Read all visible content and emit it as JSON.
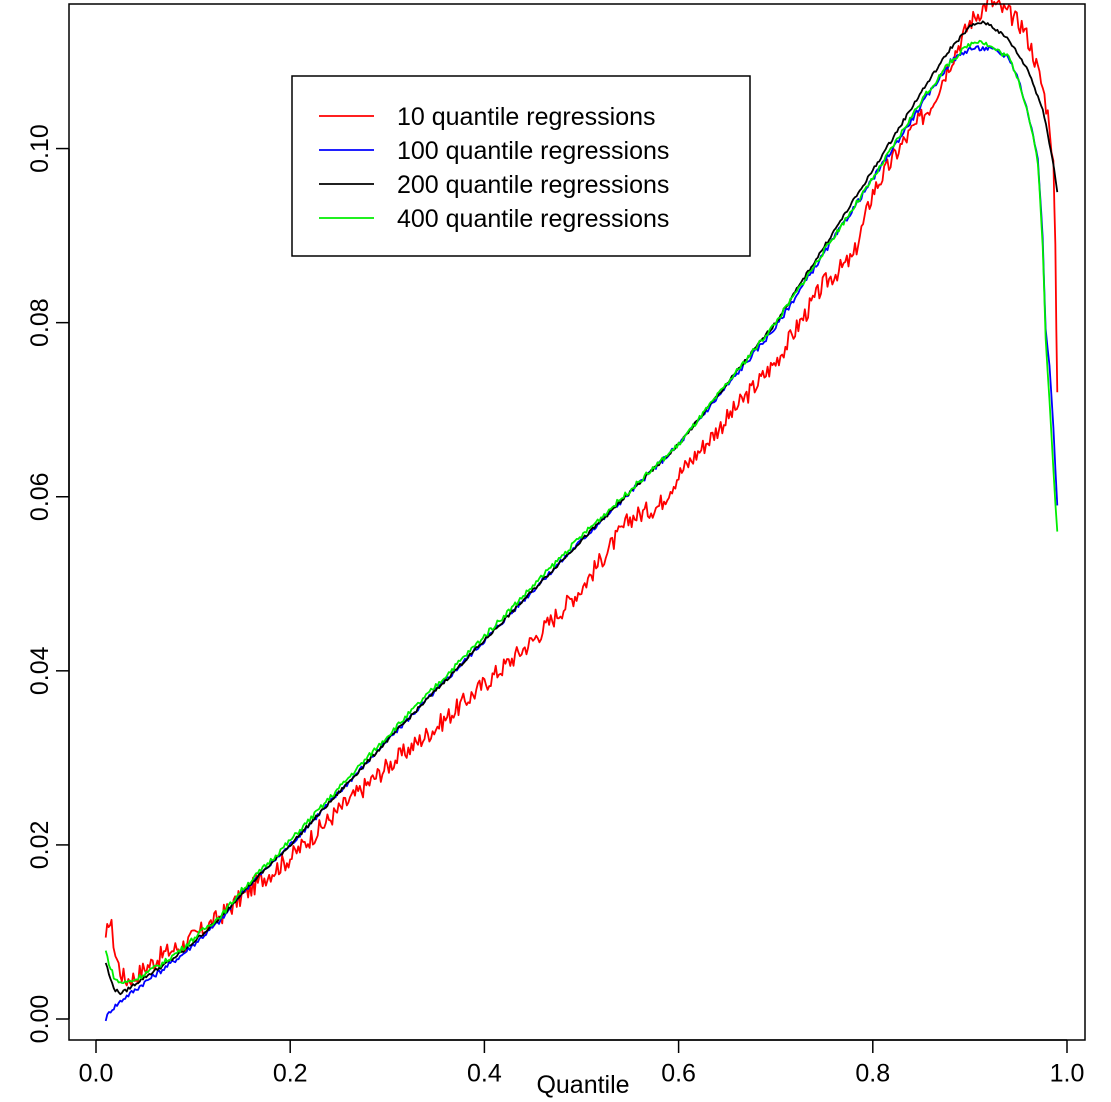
{
  "chart_data": {
    "type": "line",
    "title": "",
    "xlabel": "Quantile",
    "ylabel": "",
    "xlim": [
      0.0,
      1.0
    ],
    "ylim": [
      0.0,
      0.115
    ],
    "xticks": [
      0.0,
      0.2,
      0.4,
      0.6,
      0.8,
      1.0
    ],
    "xtick_labels": [
      "0.0",
      "0.2",
      "0.4",
      "0.6",
      "0.8",
      "1.0"
    ],
    "yticks": [
      0.0,
      0.02,
      0.04,
      0.06,
      0.08,
      0.1
    ],
    "ytick_labels": [
      "0.00",
      "0.02",
      "0.04",
      "0.06",
      "0.08",
      "0.10"
    ],
    "grid": false,
    "legend_position": "top-center",
    "series": [
      {
        "name": "10 quantile regressions",
        "color": "#ff0000",
        "x": [
          0.01,
          0.013,
          0.016,
          0.02,
          0.025,
          0.03,
          0.04,
          0.05,
          0.07,
          0.09,
          0.11,
          0.13,
          0.15,
          0.17,
          0.2,
          0.25,
          0.3,
          0.35,
          0.4,
          0.45,
          0.5,
          0.55,
          0.58,
          0.6,
          0.65,
          0.7,
          0.75,
          0.78,
          0.8,
          0.83,
          0.86,
          0.88,
          0.9,
          0.92,
          0.94,
          0.955,
          0.965,
          0.975,
          0.982,
          0.986,
          0.988,
          0.99
        ],
        "y": [
          0.0085,
          0.0115,
          0.0105,
          0.0075,
          0.0055,
          0.0045,
          0.0048,
          0.0058,
          0.0075,
          0.0085,
          0.0102,
          0.012,
          0.014,
          0.016,
          0.0185,
          0.024,
          0.029,
          0.0335,
          0.0385,
          0.0435,
          0.0495,
          0.0575,
          0.059,
          0.0625,
          0.069,
          0.0755,
          0.0845,
          0.0875,
          0.095,
          0.1005,
          0.105,
          0.11,
          0.1145,
          0.117,
          0.1155,
          0.114,
          0.111,
          0.107,
          0.103,
          0.098,
          0.088,
          0.072
        ]
      },
      {
        "name": "100 quantile regressions",
        "color": "#0000ff",
        "x": [
          0.01,
          0.015,
          0.02,
          0.03,
          0.04,
          0.05,
          0.07,
          0.09,
          0.11,
          0.13,
          0.15,
          0.2,
          0.3,
          0.4,
          0.5,
          0.6,
          0.7,
          0.8,
          0.85,
          0.88,
          0.9,
          0.92,
          0.94,
          0.95,
          0.96,
          0.97,
          0.975,
          0.978,
          0.982,
          0.986,
          0.99
        ],
        "y": [
          0.0,
          0.001,
          0.0015,
          0.0025,
          0.0033,
          0.0042,
          0.0058,
          0.0075,
          0.0095,
          0.0115,
          0.0145,
          0.02,
          0.032,
          0.0435,
          0.055,
          0.066,
          0.0795,
          0.0965,
          0.105,
          0.11,
          0.1115,
          0.1115,
          0.1105,
          0.108,
          0.104,
          0.099,
          0.09,
          0.079,
          0.075,
          0.068,
          0.059
        ]
      },
      {
        "name": "200 quantile regressions",
        "color": "#000000",
        "x": [
          0.01,
          0.015,
          0.02,
          0.025,
          0.03,
          0.04,
          0.05,
          0.07,
          0.09,
          0.11,
          0.13,
          0.15,
          0.2,
          0.3,
          0.4,
          0.5,
          0.6,
          0.7,
          0.8,
          0.85,
          0.88,
          0.9,
          0.91,
          0.92,
          0.94,
          0.96,
          0.975,
          0.985,
          0.99
        ],
        "y": [
          0.0065,
          0.0045,
          0.0033,
          0.003,
          0.0032,
          0.004,
          0.0048,
          0.0062,
          0.0078,
          0.0098,
          0.0118,
          0.0145,
          0.02,
          0.032,
          0.0435,
          0.055,
          0.066,
          0.08,
          0.0975,
          0.1065,
          0.1115,
          0.114,
          0.1145,
          0.1143,
          0.1125,
          0.109,
          0.1045,
          0.099,
          0.095
        ]
      },
      {
        "name": "400 quantile regressions",
        "color": "#00ee00",
        "x": [
          0.01,
          0.015,
          0.02,
          0.025,
          0.03,
          0.04,
          0.05,
          0.07,
          0.09,
          0.11,
          0.13,
          0.15,
          0.2,
          0.3,
          0.4,
          0.5,
          0.6,
          0.7,
          0.8,
          0.85,
          0.88,
          0.9,
          0.91,
          0.92,
          0.94,
          0.95,
          0.96,
          0.97,
          0.975,
          0.978,
          0.982,
          0.986,
          0.99
        ],
        "y": [
          0.0078,
          0.0058,
          0.0045,
          0.0042,
          0.0042,
          0.0045,
          0.0052,
          0.0065,
          0.0082,
          0.0102,
          0.012,
          0.0148,
          0.0205,
          0.0325,
          0.044,
          0.0555,
          0.066,
          0.08,
          0.0965,
          0.1055,
          0.11,
          0.112,
          0.1125,
          0.1118,
          0.1105,
          0.108,
          0.104,
          0.0985,
          0.089,
          0.078,
          0.071,
          0.063,
          0.056
        ]
      }
    ]
  }
}
